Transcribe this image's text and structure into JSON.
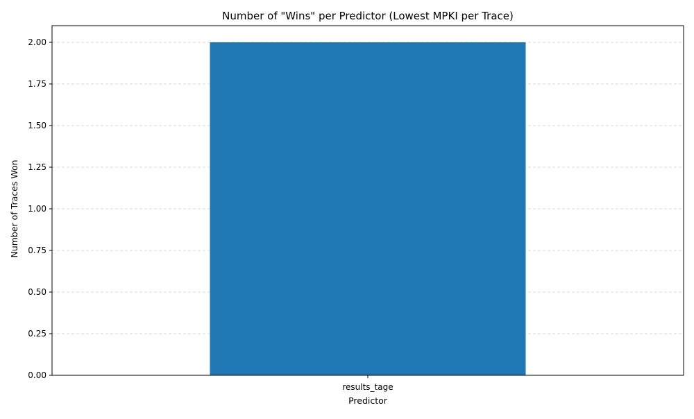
{
  "chart_data": {
    "type": "bar",
    "title": "Number of \"Wins\" per Predictor (Lowest MPKI per Trace)",
    "xlabel": "Predictor",
    "ylabel": "Number of Traces Won",
    "categories": [
      "results_tage"
    ],
    "values": [
      2
    ],
    "ylim": [
      0,
      2.1
    ],
    "yticks": [
      0,
      0.25,
      0.5,
      0.75,
      1.0,
      1.25,
      1.5,
      1.75,
      2.0
    ],
    "ytick_labels": [
      "0.00",
      "0.25",
      "0.50",
      "0.75",
      "1.00",
      "1.25",
      "1.50",
      "1.75",
      "2.00"
    ],
    "grid": "y-dashed",
    "bar_color": "#1f77b4",
    "grid_color": "#cccccc"
  }
}
